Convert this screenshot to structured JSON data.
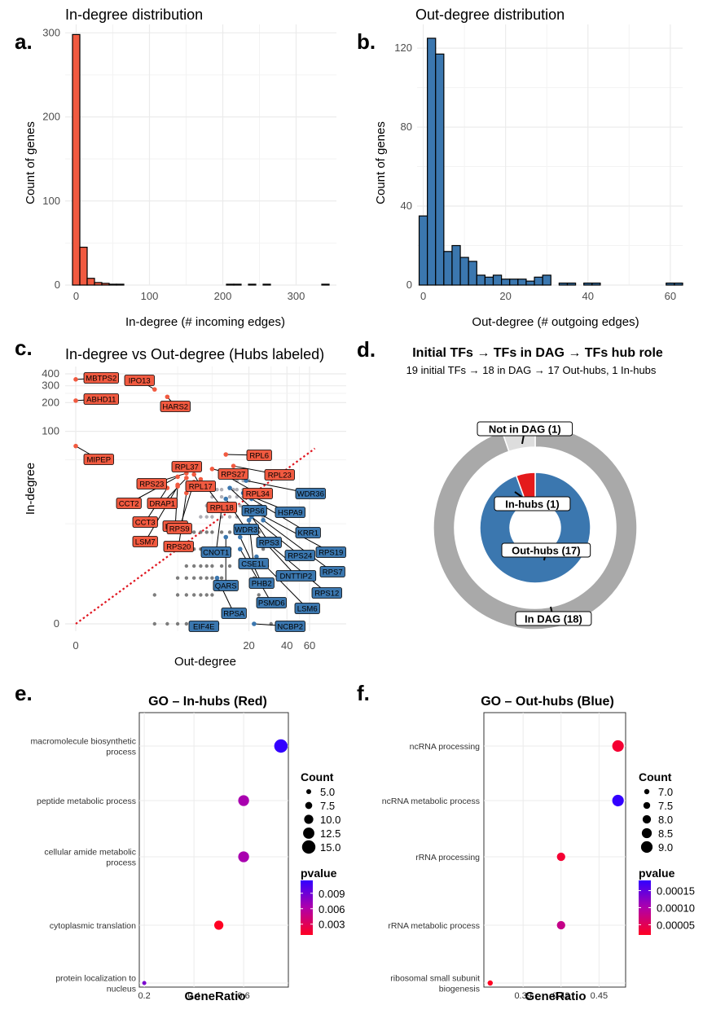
{
  "panel_letters": [
    "a.",
    "b.",
    "c.",
    "d.",
    "e.",
    "f."
  ],
  "colors": {
    "red": "#F15A40",
    "blue": "#3B77AF",
    "grey": "#A9A9A9",
    "lightgrey": "#DDDDDD",
    "grid": "#EBEBEB",
    "dark": "#555555"
  },
  "chart_data": [
    {
      "id": "a",
      "type": "bar",
      "title": "In-degree distribution",
      "xlabel": "In-degree (# incoming edges)",
      "ylabel": "Count of genes",
      "xlim": [
        -15,
        355
      ],
      "ylim": [
        0,
        310
      ],
      "xticks": [
        0,
        100,
        200,
        300
      ],
      "yticks": [
        0,
        100,
        200,
        300
      ],
      "binwidth": 10,
      "bins": [
        {
          "x": 0,
          "count": 298
        },
        {
          "x": 10,
          "count": 45
        },
        {
          "x": 20,
          "count": 8
        },
        {
          "x": 30,
          "count": 3
        },
        {
          "x": 40,
          "count": 2
        },
        {
          "x": 50,
          "count": 1
        },
        {
          "x": 60,
          "count": 1
        },
        {
          "x": 210,
          "count": 1
        },
        {
          "x": 220,
          "count": 1
        },
        {
          "x": 240,
          "count": 1
        },
        {
          "x": 260,
          "count": 1
        },
        {
          "x": 340,
          "count": 1
        }
      ],
      "color": "#F15A40"
    },
    {
      "id": "b",
      "type": "bar",
      "title": "Out-degree distribution",
      "xlabel": "Out-degree (# outgoing edges)",
      "ylabel": "Count of genes",
      "xlim": [
        -1.5,
        63
      ],
      "ylim": [
        0,
        132
      ],
      "xticks": [
        0,
        20,
        40,
        60
      ],
      "yticks": [
        0,
        40,
        80,
        120
      ],
      "binwidth": 2,
      "bins": [
        {
          "x": 0,
          "count": 35
        },
        {
          "x": 2,
          "count": 125
        },
        {
          "x": 4,
          "count": 117
        },
        {
          "x": 6,
          "count": 17
        },
        {
          "x": 8,
          "count": 20
        },
        {
          "x": 10,
          "count": 14
        },
        {
          "x": 12,
          "count": 12
        },
        {
          "x": 14,
          "count": 5
        },
        {
          "x": 16,
          "count": 4
        },
        {
          "x": 18,
          "count": 5
        },
        {
          "x": 20,
          "count": 3
        },
        {
          "x": 22,
          "count": 3
        },
        {
          "x": 24,
          "count": 3
        },
        {
          "x": 26,
          "count": 2
        },
        {
          "x": 28,
          "count": 4
        },
        {
          "x": 30,
          "count": 5
        },
        {
          "x": 34,
          "count": 1
        },
        {
          "x": 36,
          "count": 1
        },
        {
          "x": 40,
          "count": 1
        },
        {
          "x": 42,
          "count": 1
        },
        {
          "x": 60,
          "count": 1
        },
        {
          "x": 62,
          "count": 1
        }
      ],
      "color": "#3B77AF"
    },
    {
      "id": "c",
      "type": "scatter",
      "title": "In-degree vs Out-degree (Hubs labeled)",
      "xlabel": "Out-degree",
      "ylabel": "In-degree",
      "scale": "log1p",
      "xticks": [
        0,
        20,
        40,
        60
      ],
      "yticks": [
        0,
        100,
        200,
        300,
        400
      ],
      "xlim": [
        0,
        70
      ],
      "ylim": [
        0,
        450
      ],
      "in_hubs": [
        {
          "label": "MBTPS2",
          "x": 0,
          "y": 350
        },
        {
          "label": "ABHD11",
          "x": 0,
          "y": 210
        },
        {
          "label": "IPO13",
          "x": 3,
          "y": 275
        },
        {
          "label": "HARS2",
          "x": 4,
          "y": 230
        },
        {
          "label": "MIPEP",
          "x": 0,
          "y": 70
        },
        {
          "label": "RPL6",
          "x": 13,
          "y": 57
        },
        {
          "label": "RPL37",
          "x": 6,
          "y": 45
        },
        {
          "label": "RPL23",
          "x": 15,
          "y": 43
        },
        {
          "label": "RPS27",
          "x": 10,
          "y": 40
        },
        {
          "label": "RPS23",
          "x": 6,
          "y": 36
        },
        {
          "label": "RPL17",
          "x": 7,
          "y": 35
        },
        {
          "label": "RPL34",
          "x": 13,
          "y": 34
        },
        {
          "label": "CCT2",
          "x": 5,
          "y": 33
        },
        {
          "label": "DRAP1",
          "x": 6,
          "y": 32
        },
        {
          "label": "RPL18",
          "x": 8,
          "y": 31
        },
        {
          "label": "CCT3",
          "x": 4,
          "y": 25
        },
        {
          "label": "LSM4",
          "x": 5,
          "y": 27
        },
        {
          "label": "LSM7",
          "x": 5,
          "y": 26
        },
        {
          "label": "RPS9",
          "x": 7,
          "y": 29
        },
        {
          "label": "RPS20",
          "x": 6,
          "y": 22
        }
      ],
      "out_hubs": [
        {
          "label": "WDR36",
          "x": 19,
          "y": 30
        },
        {
          "label": "RPS6",
          "x": 14,
          "y": 25
        },
        {
          "label": "HSPA9",
          "x": 18,
          "y": 22
        },
        {
          "label": "WDR3",
          "x": 13,
          "y": 19
        },
        {
          "label": "KRR1",
          "x": 21,
          "y": 19
        },
        {
          "label": "RPS3",
          "x": 19,
          "y": 15
        },
        {
          "label": "CNOT1",
          "x": 12,
          "y": 15
        },
        {
          "label": "RPS19",
          "x": 22,
          "y": 14
        },
        {
          "label": "RPS24",
          "x": 21,
          "y": 12
        },
        {
          "label": "CSE1L",
          "x": 20,
          "y": 11
        },
        {
          "label": "RPS7",
          "x": 26,
          "y": 11
        },
        {
          "label": "DNTTIP2",
          "x": 21,
          "y": 9
        },
        {
          "label": "PHB2",
          "x": 17,
          "y": 7
        },
        {
          "label": "QARS",
          "x": 13,
          "y": 7
        },
        {
          "label": "RPS12",
          "x": 28,
          "y": 6
        },
        {
          "label": "PSMD6",
          "x": 17,
          "y": 5
        },
        {
          "label": "LSM6",
          "x": 23,
          "y": 4
        },
        {
          "label": "RPSA",
          "x": 11,
          "y": 2
        },
        {
          "label": "EIF4E",
          "x": 11,
          "y": 0
        },
        {
          "label": "NCBP2",
          "x": 22,
          "y": 0
        }
      ],
      "reference_line": "y = x"
    },
    {
      "id": "d",
      "type": "pie",
      "title": "Initial TFs → TFs in DAG → TFs hub role",
      "subtitle": "19 initial TFs → 18 in DAG → 17 Out-hubs, 1 In-hubs",
      "outer_ring": [
        {
          "label": "In DAG (18)",
          "value": 18,
          "color": "#A9A9A9"
        },
        {
          "label": "Not in DAG (1)",
          "value": 1,
          "color": "#DDDDDD"
        }
      ],
      "inner_ring": [
        {
          "label": "Out-hubs (17)",
          "value": 17,
          "color": "#3B77AF"
        },
        {
          "label": "In-hubs (1)",
          "value": 1,
          "color": "#E41A1C"
        }
      ]
    },
    {
      "id": "e",
      "type": "scatter",
      "title": "GO – In-hubs (Red)",
      "xlabel": "GeneRatio",
      "xlim": [
        0.18,
        0.78
      ],
      "xticks": [
        0.2,
        0.4,
        0.6
      ],
      "terms": [
        {
          "term": "macromolecule biosynthetic process",
          "gene_ratio": 0.75,
          "count": 15,
          "pvalue": 0.0115
        },
        {
          "term": "peptide metabolic process",
          "gene_ratio": 0.6,
          "count": 12,
          "pvalue": 0.0065
        },
        {
          "term": "cellular amide metabolic process",
          "gene_ratio": 0.6,
          "count": 12,
          "pvalue": 0.0065
        },
        {
          "term": "cytoplasmic translation",
          "gene_ratio": 0.5,
          "count": 10,
          "pvalue": 0.0009
        },
        {
          "term": "protein localization to nucleus",
          "gene_ratio": 0.2,
          "count": 4,
          "pvalue": 0.0085
        }
      ],
      "size_legend": {
        "title": "Count",
        "values": [
          5,
          7.5,
          10,
          12.5,
          15
        ],
        "labels": [
          "5.0",
          "7.5",
          "10.0",
          "12.5",
          "15.0"
        ]
      },
      "color_legend": {
        "title": "pvalue",
        "range": [
          0.0009,
          0.0115
        ],
        "ticks": [
          0.009,
          0.006,
          0.003
        ],
        "labels": [
          "0.009",
          "0.006",
          "0.003"
        ]
      }
    },
    {
      "id": "f",
      "type": "scatter",
      "title": "GO – Out-hubs (Blue)",
      "xlabel": "GeneRatio",
      "xlim": [
        0.359,
        0.471
      ],
      "xticks": [
        0.39,
        0.42,
        0.45
      ],
      "terms": [
        {
          "term": "ncRNA processing",
          "gene_ratio": 0.465,
          "count": 9,
          "pvalue": 3e-05
        },
        {
          "term": "ncRNA metabolic process",
          "gene_ratio": 0.465,
          "count": 9,
          "pvalue": 0.00018
        },
        {
          "term": "rRNA processing",
          "gene_ratio": 0.42,
          "count": 8,
          "pvalue": 3e-05
        },
        {
          "term": "rRNA metabolic process",
          "gene_ratio": 0.42,
          "count": 8,
          "pvalue": 8e-05
        },
        {
          "term": "ribosomal small subunit biogenesis",
          "gene_ratio": 0.364,
          "count": 7,
          "pvalue": 2e-05
        }
      ],
      "size_legend": {
        "title": "Count",
        "values": [
          7,
          7.5,
          8,
          8.5,
          9
        ],
        "labels": [
          "7.0",
          "7.5",
          "8.0",
          "8.5",
          "9.0"
        ]
      },
      "color_legend": {
        "title": "pvalue",
        "range": [
          2e-05,
          0.00018
        ],
        "ticks": [
          0.00015,
          0.0001,
          5e-05
        ],
        "labels": [
          "0.00015",
          "0.00010",
          "0.00005"
        ]
      }
    }
  ]
}
